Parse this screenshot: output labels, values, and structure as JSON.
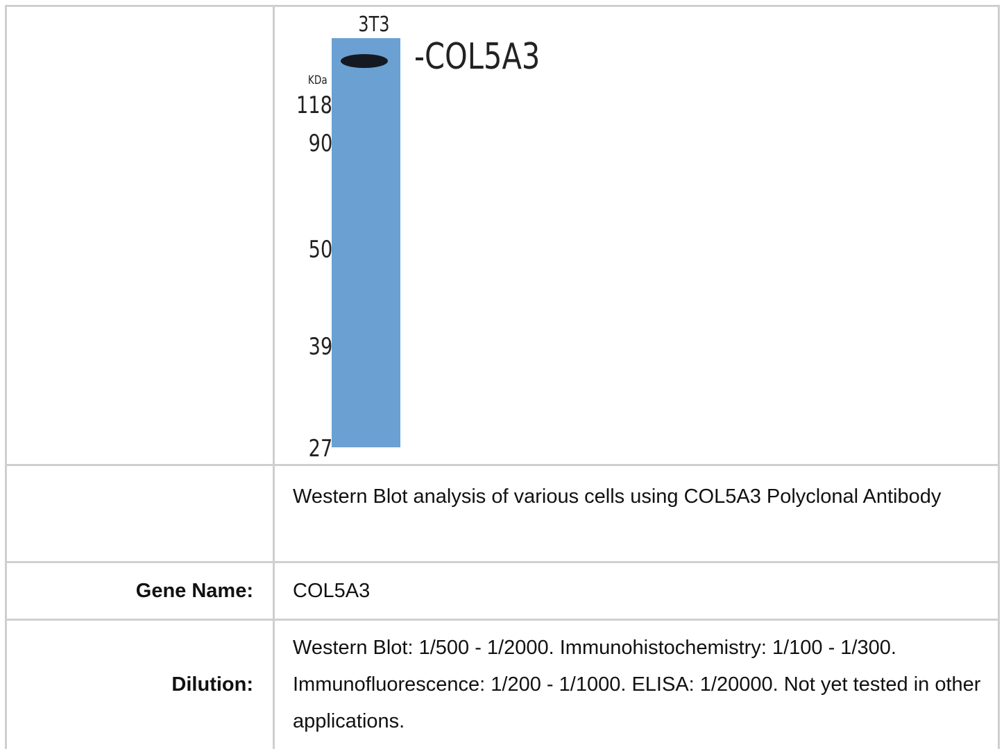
{
  "figure": {
    "lane_label": "3T3",
    "unit_label": "KDa",
    "markers": [
      "118",
      "90",
      "50",
      "39",
      "27"
    ],
    "band_label": "-COL5A3"
  },
  "table": {
    "rows": [
      [
        "",
        "Western Blot analysis of various cells using COL5A3 Polyclonal Antibody"
      ],
      [
        "Gene Name:",
        "COL5A3"
      ],
      [
        "Dilution:",
        "Western Blot: 1/500 - 1/2000. Immunohistochemistry: 1/100 - 1/300. Immunofluorescence: 1/200 - 1/1000. ELISA: 1/20000. Not yet tested in other applications."
      ]
    ]
  }
}
